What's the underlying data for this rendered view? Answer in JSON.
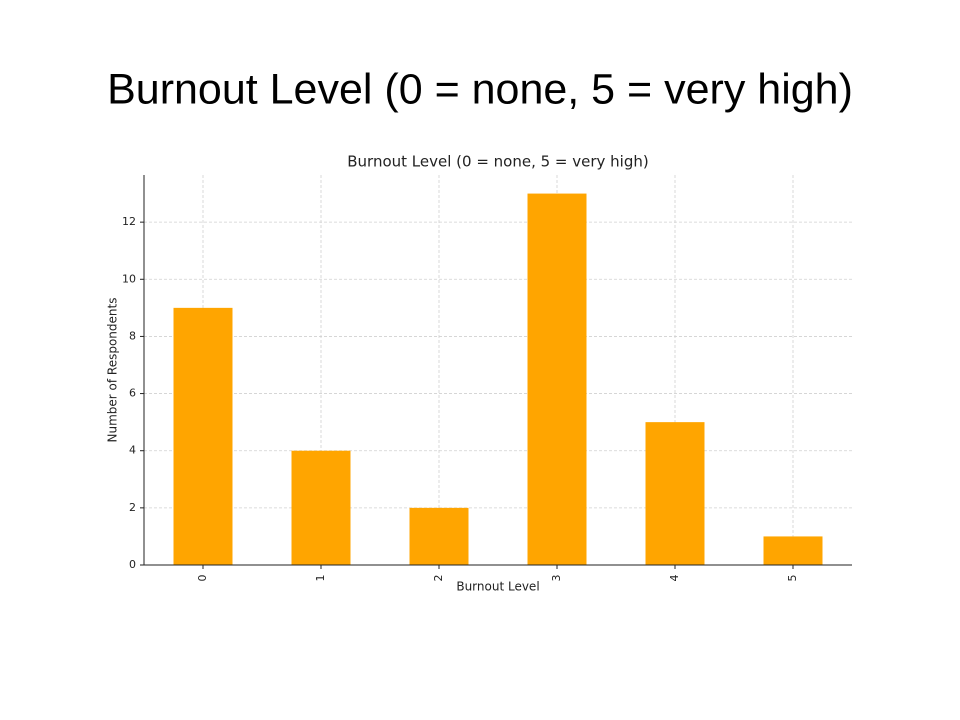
{
  "slide": {
    "title": "Burnout Level (0 = none, 5 = very high)"
  },
  "chart_data": {
    "type": "bar",
    "title": "Burnout Level (0 = none, 5 = very high)",
    "x_label": "Burnout Level",
    "y_label": "Number of Respondents",
    "categories": [
      "0",
      "1",
      "2",
      "3",
      "4",
      "5"
    ],
    "values": [
      9,
      4,
      2,
      13,
      5,
      1
    ],
    "color": "#ffa500",
    "ylim": [
      0,
      13.65
    ],
    "yticks": [
      0,
      2,
      4,
      6,
      8,
      10,
      12
    ],
    "grid": true
  }
}
